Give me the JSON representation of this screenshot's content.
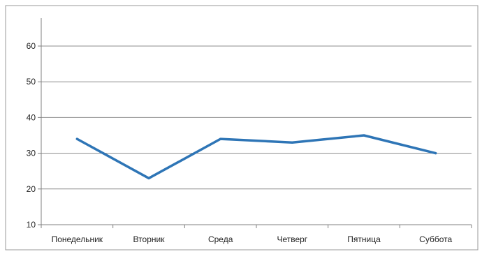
{
  "chart_data": {
    "type": "line",
    "categories": [
      "Понедельник",
      "Вторник",
      "Среда",
      "Четверг",
      "Пятница",
      "Суббота"
    ],
    "series": [
      {
        "values": [
          34,
          23,
          34,
          33,
          35,
          30
        ]
      }
    ],
    "title": "",
    "xlabel": "",
    "ylabel": "",
    "ylim": [
      10,
      60
    ],
    "yticks": [
      10,
      20,
      30,
      40,
      50,
      60
    ],
    "grid": "horizontal",
    "legend": "none",
    "colors": {
      "series": "#2E75B6",
      "grid": "#8c8c8c",
      "axis": "#808080",
      "frame": "#9a9a9a"
    }
  }
}
